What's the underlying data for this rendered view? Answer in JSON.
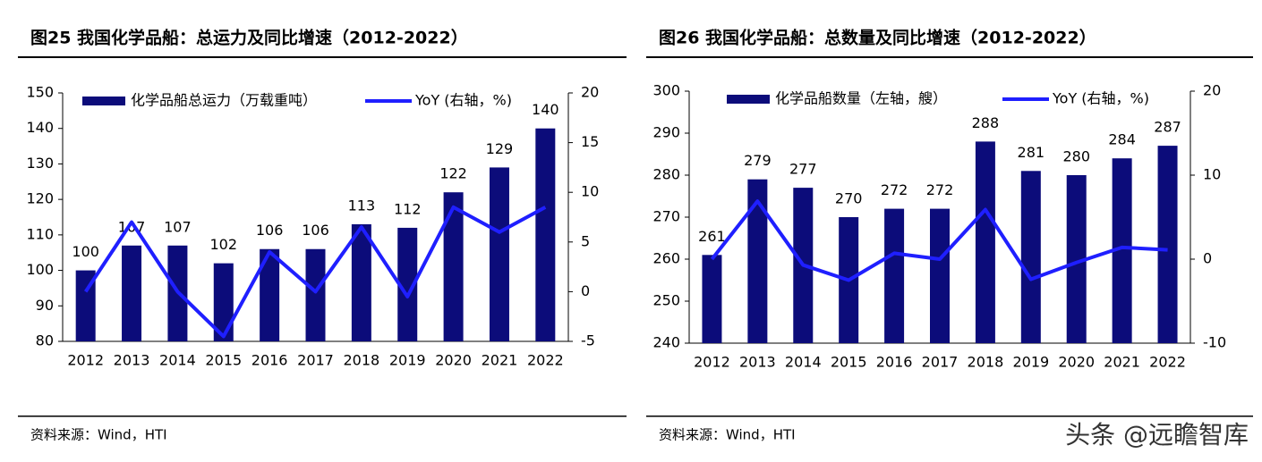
{
  "chart_data": [
    {
      "type": "bar",
      "title": "图25  我国化学品船：总运力及同比增速（2012-2022）",
      "source": "资料来源：Wind，HTI",
      "categories": [
        "2012",
        "2013",
        "2014",
        "2015",
        "2016",
        "2017",
        "2018",
        "2019",
        "2020",
        "2021",
        "2022"
      ],
      "series": [
        {
          "name": "化学品船总运力（万载重吨）",
          "type": "bar",
          "color": "#0c0c7a",
          "values": [
            100,
            107,
            107,
            102,
            106,
            106,
            113,
            112,
            122,
            129,
            140
          ]
        },
        {
          "name": "YoY (右轴，%)",
          "type": "line",
          "axis": "y2",
          "color": "#1f1fff",
          "values": [
            0,
            7,
            0,
            -4.5,
            4,
            0,
            6.5,
            -0.5,
            8.5,
            6,
            8.5
          ]
        }
      ],
      "ylim": [
        80,
        150
      ],
      "yticks": [
        80,
        90,
        100,
        110,
        120,
        130,
        140,
        150
      ],
      "y2lim": [
        -5,
        20
      ],
      "y2ticks": [
        -5,
        0,
        5,
        10,
        15,
        20
      ]
    },
    {
      "type": "bar",
      "title": "图26  我国化学品船：总数量及同比增速（2012-2022）",
      "source": "资料来源：Wind，HTI",
      "categories": [
        "2012",
        "2013",
        "2014",
        "2015",
        "2016",
        "2017",
        "2018",
        "2019",
        "2020",
        "2021",
        "2022"
      ],
      "series": [
        {
          "name": "化学品船数量（左轴，艘）",
          "type": "bar",
          "color": "#0c0c7a",
          "values": [
            261,
            279,
            277,
            270,
            272,
            272,
            288,
            281,
            280,
            284,
            287
          ]
        },
        {
          "name": "YoY (右轴，%)",
          "type": "line",
          "axis": "y2",
          "color": "#1f1fff",
          "values": [
            0,
            6.9,
            -0.7,
            -2.5,
            0.7,
            0,
            5.9,
            -2.4,
            -0.4,
            1.4,
            1.1
          ]
        }
      ],
      "ylim": [
        240,
        300
      ],
      "yticks": [
        240,
        250,
        260,
        270,
        280,
        290,
        300
      ],
      "y2lim": [
        -10,
        20
      ],
      "y2ticks": [
        -10,
        0,
        10,
        20
      ]
    }
  ],
  "watermark": "头条 @远瞻智库"
}
